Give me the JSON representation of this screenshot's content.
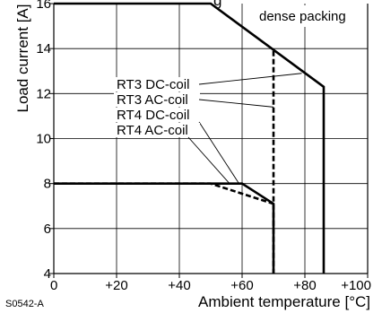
{
  "chart_data": {
    "type": "line",
    "title": "",
    "partial_title": "g",
    "xlabel": "Ambient temperature [°C]",
    "ylabel": "Load current [A]",
    "xlim": [
      0,
      100
    ],
    "ylim": [
      4,
      16
    ],
    "x_ticks": [
      0,
      20,
      40,
      60,
      80,
      100
    ],
    "x_tick_labels": [
      "0",
      "+20",
      "+40",
      "+60",
      "+80",
      "+100"
    ],
    "y_ticks": [
      4,
      6,
      8,
      10,
      12,
      14,
      16
    ],
    "y_tick_labels": [
      "4",
      "6",
      "8",
      "10",
      "12",
      "14",
      "16"
    ],
    "grid": true,
    "annotation": "dense packing",
    "figure_code": "S0542-A",
    "series": [
      {
        "name": "RT3 DC-coil",
        "style": "solid",
        "x": [
          0,
          50,
          86,
          86
        ],
        "y": [
          16,
          16,
          12.3,
          4
        ],
        "label_target": [
          79,
          12.9
        ]
      },
      {
        "name": "RT3 AC-coil",
        "style": "dashed",
        "x": [
          70,
          70
        ],
        "y": [
          13.9,
          4
        ],
        "label_target": [
          70,
          11.4
        ]
      },
      {
        "name": "RT4 DC-coil",
        "style": "solid",
        "x": [
          0,
          60,
          70,
          70
        ],
        "y": [
          8,
          8,
          7.1,
          4
        ],
        "label_target": [
          59,
          8
        ]
      },
      {
        "name": "RT4 AC-coil",
        "style": "dashed",
        "x": [
          0,
          50,
          70
        ],
        "y": [
          8,
          8,
          7.1
        ],
        "label_target": [
          56,
          8
        ]
      }
    ]
  }
}
